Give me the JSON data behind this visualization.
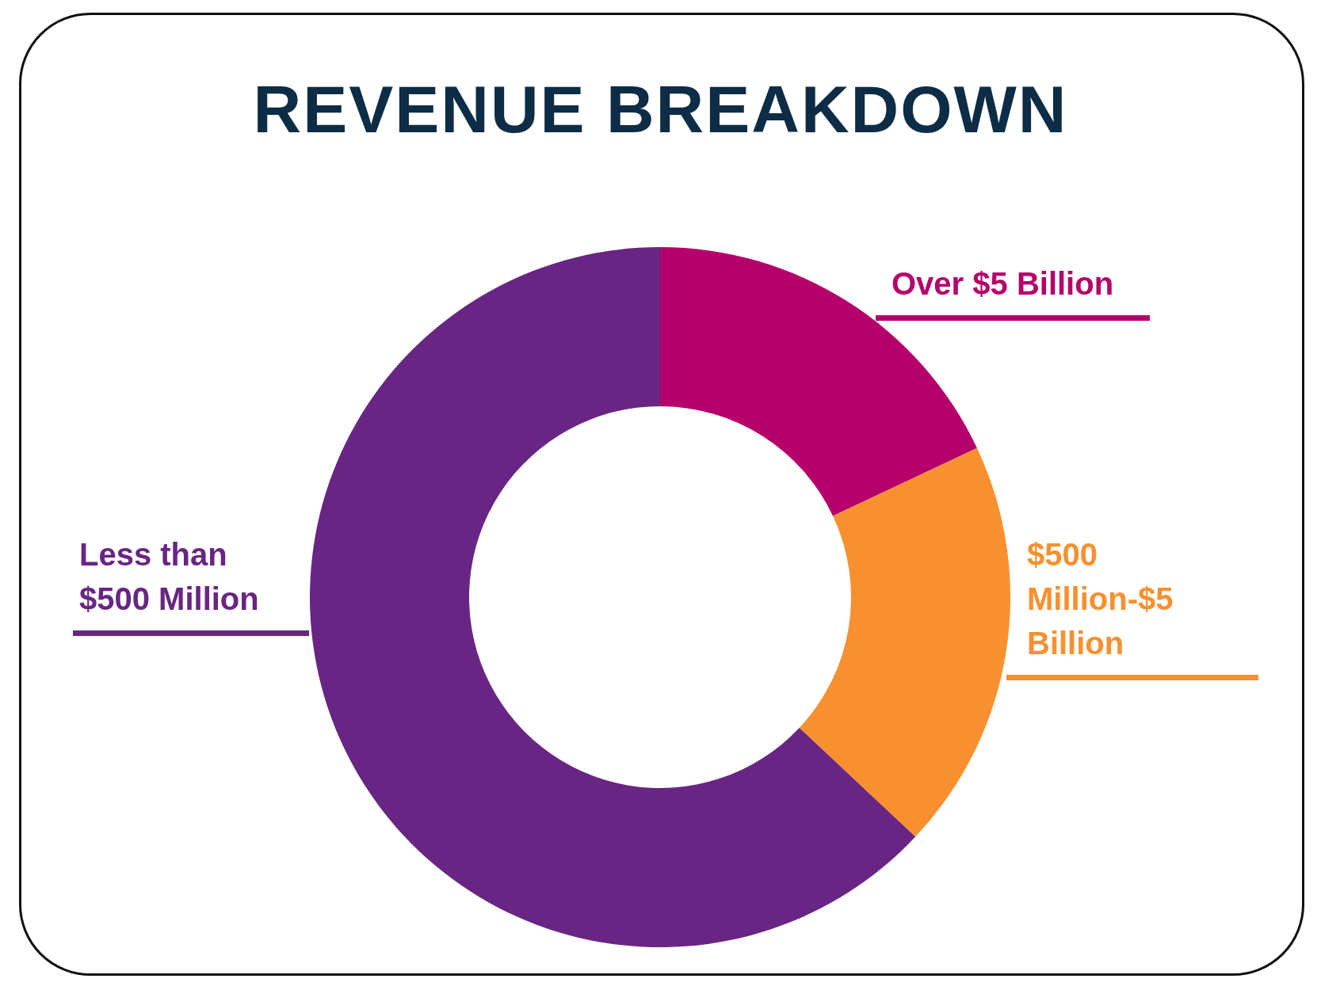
{
  "chart_data": {
    "type": "donut",
    "title": "REVENUE BREAKDOWN",
    "categories": [
      "Over $5 Billion",
      "$500 Million-$5 Billion",
      "Less than $500 Million"
    ],
    "values": [
      18,
      19,
      63
    ],
    "colors": [
      "#b5006b",
      "#f8902f",
      "#692583"
    ]
  }
}
